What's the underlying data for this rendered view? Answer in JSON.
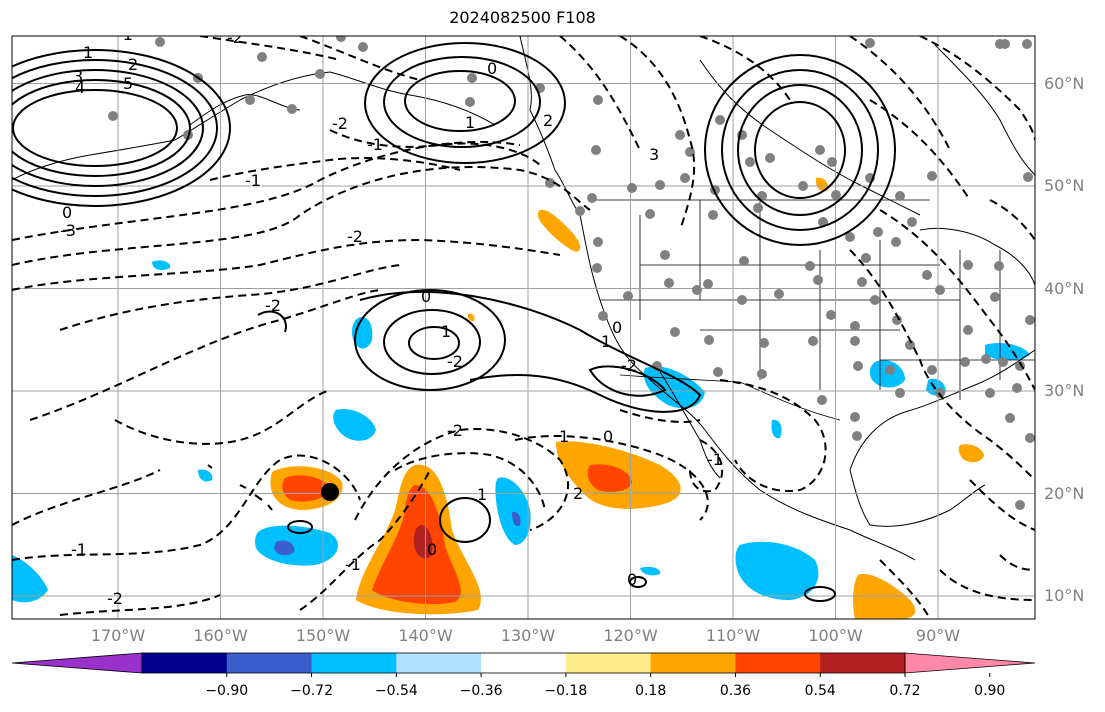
{
  "title": "2024082500 F108",
  "longitude_labels": [
    {
      "value": -170,
      "text": "170°W"
    },
    {
      "value": -160,
      "text": "160°W"
    },
    {
      "value": -150,
      "text": "150°W"
    },
    {
      "value": -140,
      "text": "140°W"
    },
    {
      "value": -130,
      "text": "130°W"
    },
    {
      "value": -120,
      "text": "120°W"
    },
    {
      "value": -110,
      "text": "110°W"
    },
    {
      "value": -100,
      "text": "100°W"
    },
    {
      "value": -90,
      "text": "90°W"
    }
  ],
  "latitude_labels": [
    {
      "value": 60,
      "text": "60°N"
    },
    {
      "value": 50,
      "text": "50°N"
    },
    {
      "value": 40,
      "text": "40°N"
    },
    {
      "value": 30,
      "text": "30°N"
    },
    {
      "value": 20,
      "text": "20°N"
    },
    {
      "value": 10,
      "text": "10°N"
    }
  ],
  "colorbar": {
    "colors": [
      "#9932cc",
      "#00008b",
      "#3a5fcd",
      "#00bfff",
      "#b0e2ff",
      "#ffffff",
      "#ffec8b",
      "#ffa500",
      "#ff4500",
      "#b22222",
      "#ff88aa"
    ],
    "tick_labels": [
      "−0.90",
      "−0.72",
      "−0.54",
      "−0.36",
      "−0.18",
      "0.18",
      "0.36",
      "0.54",
      "0.72",
      "0.90"
    ]
  },
  "contour_labels": [
    "-1",
    "-2",
    "1",
    "2",
    "3",
    "4",
    "5",
    "0",
    "-3",
    "-1",
    "-2",
    "-1",
    "0",
    "1",
    "2",
    "3",
    "-2",
    "-2",
    "0",
    "1",
    "-2",
    "1",
    "-2",
    "0",
    "2",
    "-1",
    "1",
    "0",
    "1",
    "-2",
    "-1",
    "-2",
    "-1",
    "0",
    "0"
  ],
  "chart_data": {
    "type": "map",
    "title": "2024082500 F108",
    "xlim": [
      -178,
      -78
    ],
    "ylim": [
      8,
      66
    ],
    "marker": {
      "lon": -148.5,
      "lat": 20.3,
      "color": "#000000"
    },
    "colorbar_levels": [
      -0.9,
      -0.72,
      -0.54,
      -0.36,
      -0.18,
      0.18,
      0.36,
      0.54,
      0.72,
      0.9
    ]
  }
}
